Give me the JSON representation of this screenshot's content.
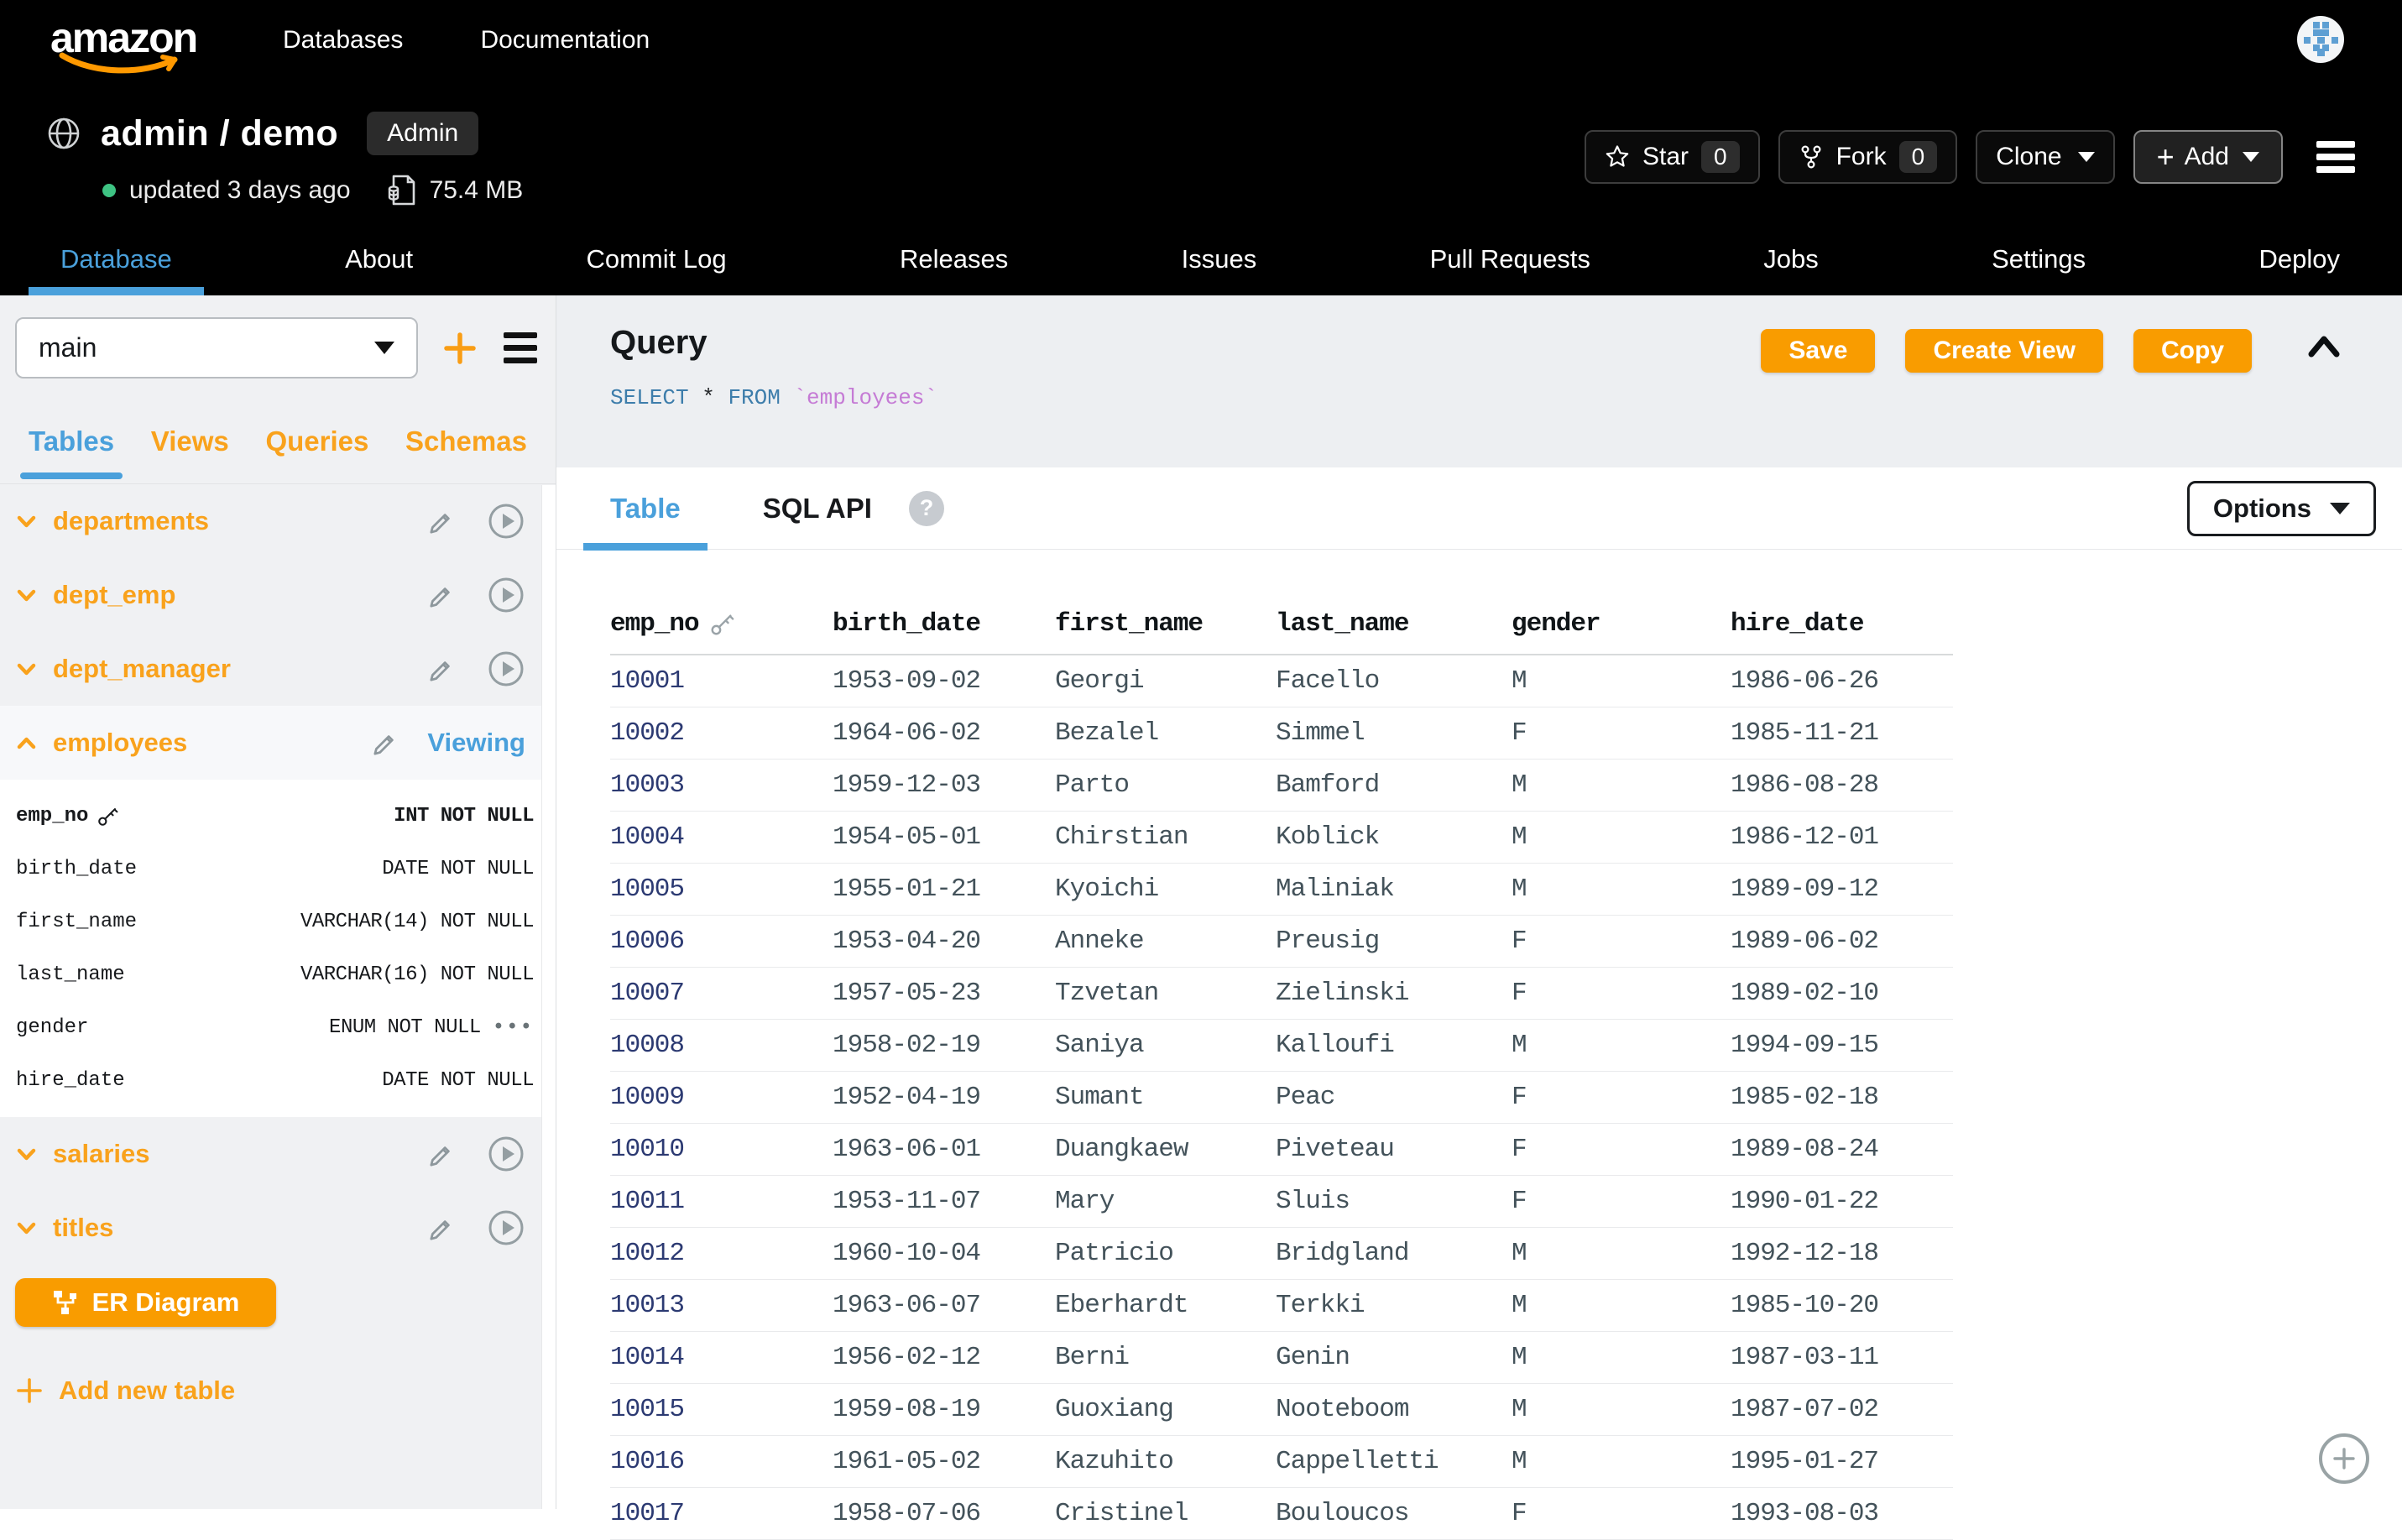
{
  "topnav": {
    "logo": "amazon",
    "links": [
      {
        "label": "Databases"
      },
      {
        "label": "Documentation"
      }
    ]
  },
  "repo": {
    "title": "admin / demo",
    "badge": "Admin",
    "updated": "updated 3 days ago",
    "size": "75.4 MB",
    "actions": {
      "star": "Star",
      "star_count": "0",
      "fork": "Fork",
      "fork_count": "0",
      "clone": "Clone",
      "add": "Add"
    }
  },
  "repo_tabs": {
    "items": [
      {
        "label": "Database",
        "active": true
      },
      {
        "label": "About"
      },
      {
        "label": "Commit Log"
      },
      {
        "label": "Releases"
      },
      {
        "label": "Issues"
      },
      {
        "label": "Pull Requests"
      },
      {
        "label": "Jobs"
      },
      {
        "label": "Settings"
      },
      {
        "label": "Deploy"
      }
    ]
  },
  "sidebar": {
    "branch": "main",
    "tabs": [
      {
        "label": "Tables",
        "active": true
      },
      {
        "label": "Views"
      },
      {
        "label": "Queries"
      },
      {
        "label": "Schemas"
      }
    ],
    "tables": [
      {
        "name": "departments"
      },
      {
        "name": "dept_emp"
      },
      {
        "name": "dept_manager"
      },
      {
        "name": "employees",
        "status": "Viewing",
        "expanded": true
      },
      {
        "name": "salaries"
      },
      {
        "name": "titles"
      }
    ],
    "employees_columns": [
      {
        "name": "emp_no",
        "type": "INT NOT NULL",
        "primary_key": true
      },
      {
        "name": "birth_date",
        "type": "DATE NOT NULL"
      },
      {
        "name": "first_name",
        "type": "VARCHAR(14) NOT NULL"
      },
      {
        "name": "last_name",
        "type": "VARCHAR(16) NOT NULL"
      },
      {
        "name": "gender",
        "type": "ENUM NOT NULL",
        "more": "•••"
      },
      {
        "name": "hire_date",
        "type": "DATE NOT NULL"
      }
    ],
    "er_button": "ER Diagram",
    "add_table": "Add new table"
  },
  "query": {
    "title": "Query",
    "sql_tokens": [
      {
        "text": "SELECT "
      },
      {
        "text": "* "
      },
      {
        "text": "FROM "
      },
      {
        "text": "`employees`"
      }
    ],
    "buttons": {
      "save": "Save",
      "create_view": "Create View",
      "copy": "Copy"
    }
  },
  "results": {
    "tabs": {
      "table": "Table",
      "sql_api": "SQL API",
      "help": "?"
    },
    "options": "Options",
    "columns": [
      {
        "label": "emp_no",
        "key": true
      },
      {
        "label": "birth_date"
      },
      {
        "label": "first_name"
      },
      {
        "label": "last_name"
      },
      {
        "label": "gender"
      },
      {
        "label": "hire_date"
      }
    ],
    "rows": [
      [
        "10001",
        "1953-09-02",
        "Georgi",
        "Facello",
        "M",
        "1986-06-26"
      ],
      [
        "10002",
        "1964-06-02",
        "Bezalel",
        "Simmel",
        "F",
        "1985-11-21"
      ],
      [
        "10003",
        "1959-12-03",
        "Parto",
        "Bamford",
        "M",
        "1986-08-28"
      ],
      [
        "10004",
        "1954-05-01",
        "Chirstian",
        "Koblick",
        "M",
        "1986-12-01"
      ],
      [
        "10005",
        "1955-01-21",
        "Kyoichi",
        "Maliniak",
        "M",
        "1989-09-12"
      ],
      [
        "10006",
        "1953-04-20",
        "Anneke",
        "Preusig",
        "F",
        "1989-06-02"
      ],
      [
        "10007",
        "1957-05-23",
        "Tzvetan",
        "Zielinski",
        "F",
        "1989-02-10"
      ],
      [
        "10008",
        "1958-02-19",
        "Saniya",
        "Kalloufi",
        "M",
        "1994-09-15"
      ],
      [
        "10009",
        "1952-04-19",
        "Sumant",
        "Peac",
        "F",
        "1985-02-18"
      ],
      [
        "10010",
        "1963-06-01",
        "Duangkaew",
        "Piveteau",
        "F",
        "1989-08-24"
      ],
      [
        "10011",
        "1953-11-07",
        "Mary",
        "Sluis",
        "F",
        "1990-01-22"
      ],
      [
        "10012",
        "1960-10-04",
        "Patricio",
        "Bridgland",
        "M",
        "1992-12-18"
      ],
      [
        "10013",
        "1963-06-07",
        "Eberhardt",
        "Terkki",
        "M",
        "1985-10-20"
      ],
      [
        "10014",
        "1956-02-12",
        "Berni",
        "Genin",
        "M",
        "1987-03-11"
      ],
      [
        "10015",
        "1959-08-19",
        "Guoxiang",
        "Nooteboom",
        "M",
        "1987-07-02"
      ],
      [
        "10016",
        "1961-05-02",
        "Kazuhito",
        "Cappelletti",
        "M",
        "1995-01-27"
      ],
      [
        "10017",
        "1958-07-06",
        "Cristinel",
        "Bouloucos",
        "F",
        "1993-08-03"
      ]
    ]
  }
}
